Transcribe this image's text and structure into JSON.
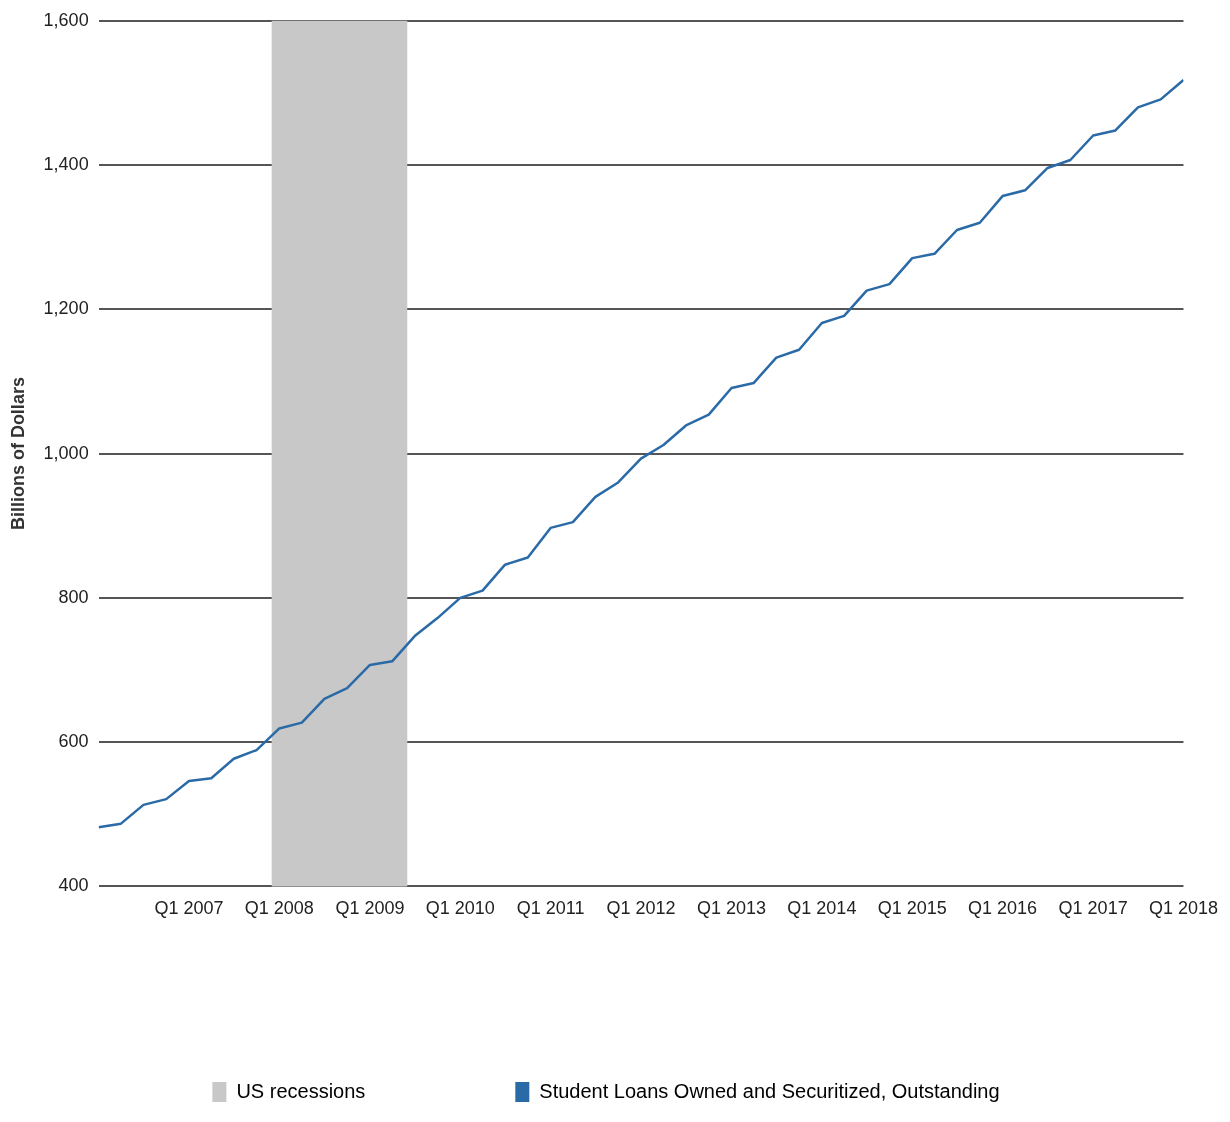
{
  "chart_data": {
    "type": "line",
    "ylabel": "Billions of Dollars",
    "x": [
      "2006-01",
      "2006-04",
      "2006-07",
      "2006-10",
      "2007-01",
      "2007-04",
      "2007-07",
      "2007-10",
      "2008-01",
      "2008-04",
      "2008-07",
      "2008-10",
      "2009-01",
      "2009-04",
      "2009-07",
      "2009-10",
      "2010-01",
      "2010-04",
      "2010-07",
      "2010-10",
      "2011-01",
      "2011-04",
      "2011-07",
      "2011-10",
      "2012-01",
      "2012-04",
      "2012-07",
      "2012-10",
      "2013-01",
      "2013-04",
      "2013-07",
      "2013-10",
      "2014-01",
      "2014-04",
      "2014-07",
      "2014-10",
      "2015-01",
      "2015-04",
      "2015-07",
      "2015-10",
      "2016-01",
      "2016-04",
      "2016-07",
      "2016-10",
      "2017-01",
      "2017-04",
      "2017-07",
      "2017-10",
      "2018-01"
    ],
    "series": [
      {
        "name": "Student Loans Owned and Securitized, Outstanding",
        "color": "#2a6aa6",
        "values": [
          482,
          487,
          513,
          521,
          546,
          550,
          577,
          589,
          619,
          627,
          660,
          675,
          707,
          712,
          747,
          772,
          800,
          810,
          846,
          856,
          897,
          905,
          940,
          960,
          993,
          1012,
          1039,
          1054,
          1091,
          1098,
          1133,
          1144,
          1181,
          1191,
          1226,
          1235,
          1271,
          1277,
          1310,
          1320,
          1357,
          1365,
          1396,
          1407,
          1441,
          1448,
          1480,
          1491,
          1518
        ]
      }
    ],
    "xlim": [
      "2006-01",
      "2018-01"
    ],
    "xticks": [
      {
        "value": "2007-01",
        "label": "Q1 2007"
      },
      {
        "value": "2008-01",
        "label": "Q1 2008"
      },
      {
        "value": "2009-01",
        "label": "Q1 2009"
      },
      {
        "value": "2010-01",
        "label": "Q1 2010"
      },
      {
        "value": "2011-01",
        "label": "Q1 2011"
      },
      {
        "value": "2012-01",
        "label": "Q1 2012"
      },
      {
        "value": "2013-01",
        "label": "Q1 2013"
      },
      {
        "value": "2014-01",
        "label": "Q1 2014"
      },
      {
        "value": "2015-01",
        "label": "Q1 2015"
      },
      {
        "value": "2016-01",
        "label": "Q1 2016"
      },
      {
        "value": "2017-01",
        "label": "Q1 2017"
      },
      {
        "value": "2018-01",
        "label": "Q1 2018"
      }
    ],
    "ylim": [
      400,
      1600
    ],
    "yticks": [
      {
        "value": 400,
        "label": "400"
      },
      {
        "value": 600,
        "label": "600"
      },
      {
        "value": 800,
        "label": "800"
      },
      {
        "value": 1000,
        "label": "1,000"
      },
      {
        "value": 1200,
        "label": "1,200"
      },
      {
        "value": 1400,
        "label": "1,400"
      },
      {
        "value": 1600,
        "label": "1,600"
      }
    ],
    "bands": [
      {
        "axis": "x",
        "from": "2007-12",
        "to": "2009-06",
        "label": "US recessions",
        "color": "#c8c8c8"
      }
    ],
    "grid": "y",
    "legend": "bottom",
    "marker": "none",
    "line_style": "solid"
  }
}
